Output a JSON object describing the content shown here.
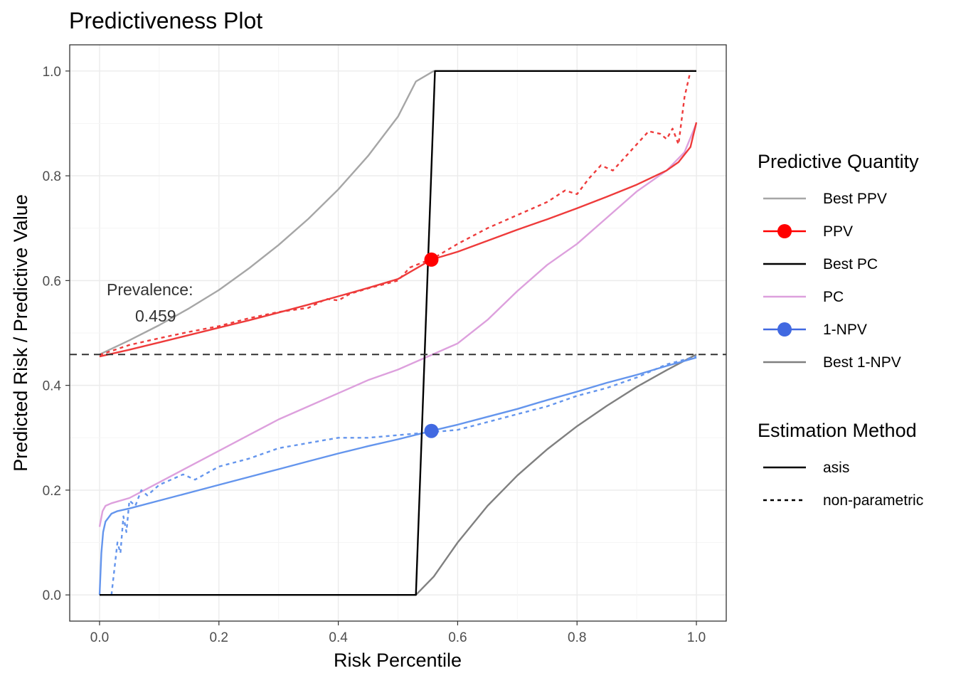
{
  "chart_data": {
    "type": "line",
    "title": "Predictiveness Plot",
    "xlabel": "Risk Percentile",
    "ylabel": "Predicted Risk / Predictive Value",
    "xlim": [
      -0.05,
      1.05
    ],
    "ylim": [
      -0.05,
      1.05
    ],
    "x_ticks": [
      "0.0",
      "0.2",
      "0.4",
      "0.6",
      "0.8",
      "1.0"
    ],
    "y_ticks": [
      "0.0",
      "0.2",
      "0.4",
      "0.6",
      "0.8",
      "1.0"
    ],
    "grid": true,
    "legend_position": "right",
    "prevalence": 0.459,
    "annotation": {
      "line1": "Prevalence:",
      "line2": "0.459"
    },
    "legend": {
      "quantity_title": "Predictive Quantity",
      "quantity_items": [
        {
          "key": "best_ppv",
          "label": "Best PPV",
          "color": "#a6a6a6",
          "point": false
        },
        {
          "key": "ppv",
          "label": "PPV",
          "color": "#ff0000",
          "point": true
        },
        {
          "key": "best_pc",
          "label": "Best PC",
          "color": "#000000",
          "point": false
        },
        {
          "key": "pc",
          "label": "PC",
          "color": "#dda0dd",
          "point": false
        },
        {
          "key": "npv",
          "label": "1-NPV",
          "color": "#4169e1",
          "point": true
        },
        {
          "key": "best_npv",
          "label": "Best 1-NPV",
          "color": "#808080",
          "point": false
        }
      ],
      "method_title": "Estimation Method",
      "method_items": [
        {
          "key": "asis",
          "label": "asis",
          "dash": "solid"
        },
        {
          "key": "nonpar",
          "label": "non-parametric",
          "dash": "dashed"
        }
      ]
    },
    "series": [
      {
        "key": "best_ppv",
        "method": "asis",
        "color": "#a6a6a6",
        "x": [
          0,
          0.05,
          0.1,
          0.15,
          0.2,
          0.25,
          0.3,
          0.35,
          0.4,
          0.45,
          0.5,
          0.53,
          0.56,
          1.0
        ],
        "y": [
          0.459,
          0.486,
          0.515,
          0.547,
          0.582,
          0.623,
          0.668,
          0.718,
          0.774,
          0.838,
          0.913,
          0.98,
          1.0,
          1.0
        ]
      },
      {
        "key": "best_pc",
        "method": "asis",
        "color": "#000000",
        "x": [
          0,
          0.53,
          0.562,
          1.0
        ],
        "y": [
          0.0,
          0.0,
          1.0,
          1.0
        ]
      },
      {
        "key": "best_npv",
        "method": "asis",
        "color": "#808080",
        "x": [
          0.53,
          0.56,
          0.6,
          0.65,
          0.7,
          0.75,
          0.8,
          0.85,
          0.9,
          0.95,
          1.0
        ],
        "y": [
          0.0,
          0.035,
          0.1,
          0.17,
          0.228,
          0.278,
          0.322,
          0.361,
          0.397,
          0.429,
          0.459
        ]
      },
      {
        "key": "ppv",
        "method": "asis",
        "color": "#ee3b3b",
        "x": [
          0,
          0.05,
          0.1,
          0.15,
          0.2,
          0.25,
          0.3,
          0.35,
          0.4,
          0.45,
          0.5,
          0.556,
          0.6,
          0.65,
          0.7,
          0.75,
          0.8,
          0.85,
          0.9,
          0.95,
          0.97,
          0.99,
          1.0
        ],
        "y": [
          0.455,
          0.468,
          0.482,
          0.496,
          0.51,
          0.524,
          0.539,
          0.554,
          0.57,
          0.586,
          0.603,
          0.64,
          0.655,
          0.676,
          0.697,
          0.717,
          0.738,
          0.76,
          0.783,
          0.81,
          0.826,
          0.855,
          0.902
        ]
      },
      {
        "key": "ppv",
        "method": "nonpar",
        "color": "#ee3b3b",
        "x": [
          0,
          0.05,
          0.1,
          0.15,
          0.2,
          0.25,
          0.3,
          0.35,
          0.38,
          0.4,
          0.42,
          0.45,
          0.5,
          0.52,
          0.56,
          0.6,
          0.65,
          0.7,
          0.72,
          0.75,
          0.78,
          0.8,
          0.82,
          0.84,
          0.86,
          0.88,
          0.9,
          0.92,
          0.94,
          0.95,
          0.96,
          0.97,
          0.98,
          0.99,
          1.0
        ],
        "y": [
          0.458,
          0.477,
          0.49,
          0.502,
          0.513,
          0.528,
          0.54,
          0.548,
          0.565,
          0.562,
          0.575,
          0.585,
          0.6,
          0.625,
          0.643,
          0.67,
          0.7,
          0.725,
          0.735,
          0.75,
          0.772,
          0.765,
          0.795,
          0.82,
          0.81,
          0.835,
          0.86,
          0.885,
          0.88,
          0.87,
          0.89,
          0.86,
          0.95,
          1.0,
          1.0
        ]
      },
      {
        "key": "pc",
        "method": "asis",
        "color": "#dda0dd",
        "x": [
          0,
          0.005,
          0.01,
          0.02,
          0.05,
          0.1,
          0.15,
          0.2,
          0.25,
          0.3,
          0.35,
          0.4,
          0.45,
          0.5,
          0.55,
          0.6,
          0.65,
          0.7,
          0.75,
          0.8,
          0.85,
          0.9,
          0.95,
          0.98,
          1.0
        ],
        "y": [
          0.13,
          0.16,
          0.17,
          0.175,
          0.185,
          0.215,
          0.245,
          0.275,
          0.305,
          0.335,
          0.36,
          0.385,
          0.41,
          0.43,
          0.455,
          0.48,
          0.525,
          0.58,
          0.63,
          0.67,
          0.72,
          0.77,
          0.81,
          0.845,
          0.9
        ]
      },
      {
        "key": "npv",
        "method": "asis",
        "color": "#6495ed",
        "x": [
          0,
          0.003,
          0.006,
          0.01,
          0.02,
          0.03,
          0.05,
          0.1,
          0.15,
          0.2,
          0.25,
          0.3,
          0.35,
          0.4,
          0.45,
          0.5,
          0.556,
          0.6,
          0.65,
          0.7,
          0.75,
          0.8,
          0.85,
          0.9,
          0.95,
          1.0
        ],
        "y": [
          0.0,
          0.08,
          0.12,
          0.14,
          0.155,
          0.16,
          0.165,
          0.18,
          0.195,
          0.21,
          0.225,
          0.24,
          0.255,
          0.27,
          0.284,
          0.297,
          0.313,
          0.325,
          0.34,
          0.355,
          0.372,
          0.388,
          0.405,
          0.42,
          0.437,
          0.453
        ]
      },
      {
        "key": "npv",
        "method": "nonpar",
        "color": "#6495ed",
        "x": [
          0.02,
          0.025,
          0.03,
          0.035,
          0.04,
          0.045,
          0.05,
          0.06,
          0.07,
          0.08,
          0.1,
          0.12,
          0.14,
          0.16,
          0.2,
          0.25,
          0.3,
          0.35,
          0.4,
          0.45,
          0.5,
          0.55,
          0.6,
          0.65,
          0.7,
          0.75,
          0.8,
          0.85,
          0.9,
          0.95,
          1.0
        ],
        "y": [
          0.0,
          0.05,
          0.1,
          0.08,
          0.15,
          0.12,
          0.18,
          0.17,
          0.2,
          0.19,
          0.21,
          0.22,
          0.23,
          0.22,
          0.245,
          0.26,
          0.28,
          0.29,
          0.3,
          0.3,
          0.305,
          0.31,
          0.315,
          0.33,
          0.345,
          0.36,
          0.38,
          0.395,
          0.415,
          0.44,
          0.455
        ]
      }
    ],
    "points": [
      {
        "series": "ppv",
        "x": 0.556,
        "y": 0.64,
        "color": "#ff0000"
      },
      {
        "series": "npv",
        "x": 0.556,
        "y": 0.313,
        "color": "#4169e1"
      }
    ]
  }
}
